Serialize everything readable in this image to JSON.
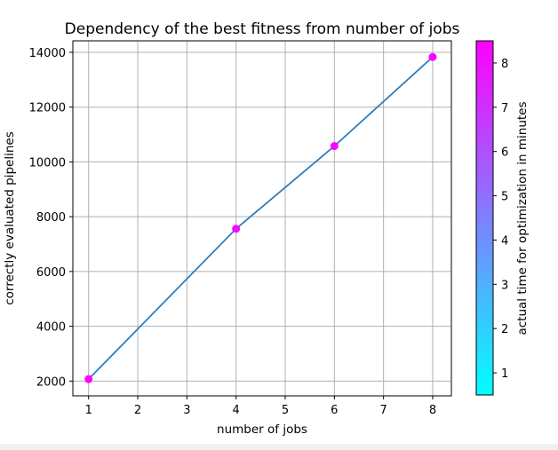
{
  "chart_data": {
    "type": "line",
    "title": "Dependency of the best fitness from number of jobs",
    "xlabel": "number of jobs",
    "ylabel": "correctly evaluated pipelines",
    "x": [
      1,
      4,
      6,
      8
    ],
    "y": [
      2070,
      7560,
      10580,
      13830
    ],
    "color_values": [
      8.4,
      8.2,
      8.3,
      8.5
    ],
    "xlim": [
      0.68,
      8.38
    ],
    "ylim": [
      1460,
      14420
    ],
    "xticks": [
      1,
      2,
      3,
      4,
      5,
      6,
      7,
      8
    ],
    "yticks": [
      2000,
      4000,
      6000,
      8000,
      10000,
      12000,
      14000
    ],
    "grid": true,
    "line_color": "#2e7ebd",
    "colorbar": {
      "label": "actual time for optimization in minutes",
      "range": [
        0.5,
        8.5
      ],
      "ticks": [
        1,
        2,
        3,
        4,
        5,
        6,
        7,
        8
      ],
      "colormap": "cool",
      "color_low": "#00ffff",
      "color_high": "#ff00ff"
    }
  }
}
